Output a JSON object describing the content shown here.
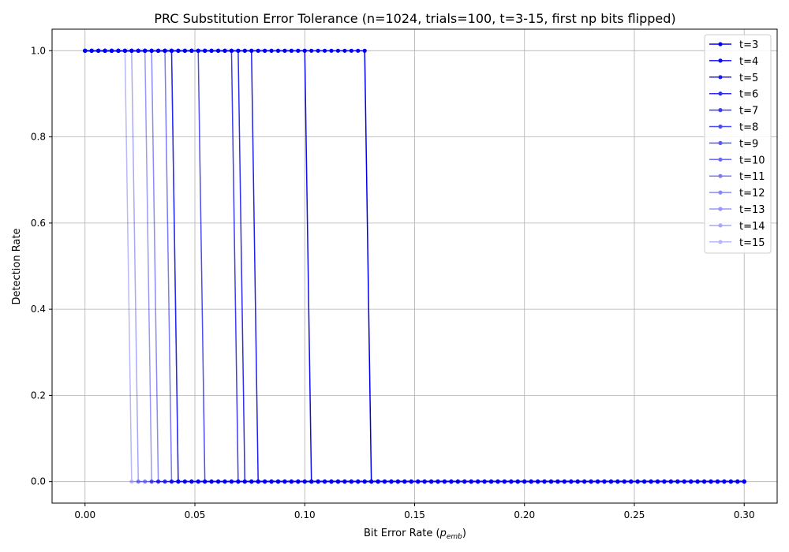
{
  "chart_data": {
    "type": "line",
    "title": "PRC Substitution Error Tolerance (n=1024, trials=100, t=3-15, first np bits flipped)",
    "xlabel": {
      "main": "Bit Error Rate (",
      "var": "p",
      "sub": "emb",
      "close": ")"
    },
    "ylabel": "Detection Rate",
    "xlim": [
      -0.015,
      0.315
    ],
    "ylim": [
      -0.05,
      1.05
    ],
    "xticks": [
      0.0,
      0.05,
      0.1,
      0.15,
      0.2,
      0.25,
      0.3
    ],
    "xtick_labels": [
      "0.00",
      "0.05",
      "0.10",
      "0.15",
      "0.20",
      "0.25",
      "0.30"
    ],
    "yticks": [
      0.0,
      0.2,
      0.4,
      0.6,
      0.8,
      1.0
    ],
    "ytick_labels": [
      "0.0",
      "0.2",
      "0.4",
      "0.6",
      "0.8",
      "1.0"
    ],
    "grid": true,
    "legend_position": "top-right",
    "x_range": {
      "start": 0.0,
      "end": 0.3,
      "points": 100
    },
    "series": [
      {
        "name": "t=3",
        "drop_after": 0.1273,
        "opacity": 1.0
      },
      {
        "name": "t=4",
        "drop_after": 0.103,
        "opacity": 0.94
      },
      {
        "name": "t=5",
        "drop_after": 0.0758,
        "opacity": 0.88
      },
      {
        "name": "t=6",
        "drop_after": 0.0727,
        "opacity": 0.82
      },
      {
        "name": "t=7",
        "drop_after": 0.0667,
        "opacity": 0.76
      },
      {
        "name": "t=8",
        "drop_after": 0.0545,
        "opacity": 0.7
      },
      {
        "name": "t=9",
        "drop_after": 0.0424,
        "opacity": 0.64
      },
      {
        "name": "t=10",
        "drop_after": 0.0394,
        "opacity": 0.58
      },
      {
        "name": "t=11",
        "drop_after": 0.0364,
        "opacity": 0.52
      },
      {
        "name": "t=12",
        "drop_after": 0.0333,
        "opacity": 0.46
      },
      {
        "name": "t=13",
        "drop_after": 0.0273,
        "opacity": 0.4
      },
      {
        "name": "t=14",
        "drop_after": 0.0242,
        "opacity": 0.34
      },
      {
        "name": "t=15",
        "drop_after": 0.0212,
        "opacity": 0.28
      }
    ],
    "series_color": "#0000ee"
  }
}
